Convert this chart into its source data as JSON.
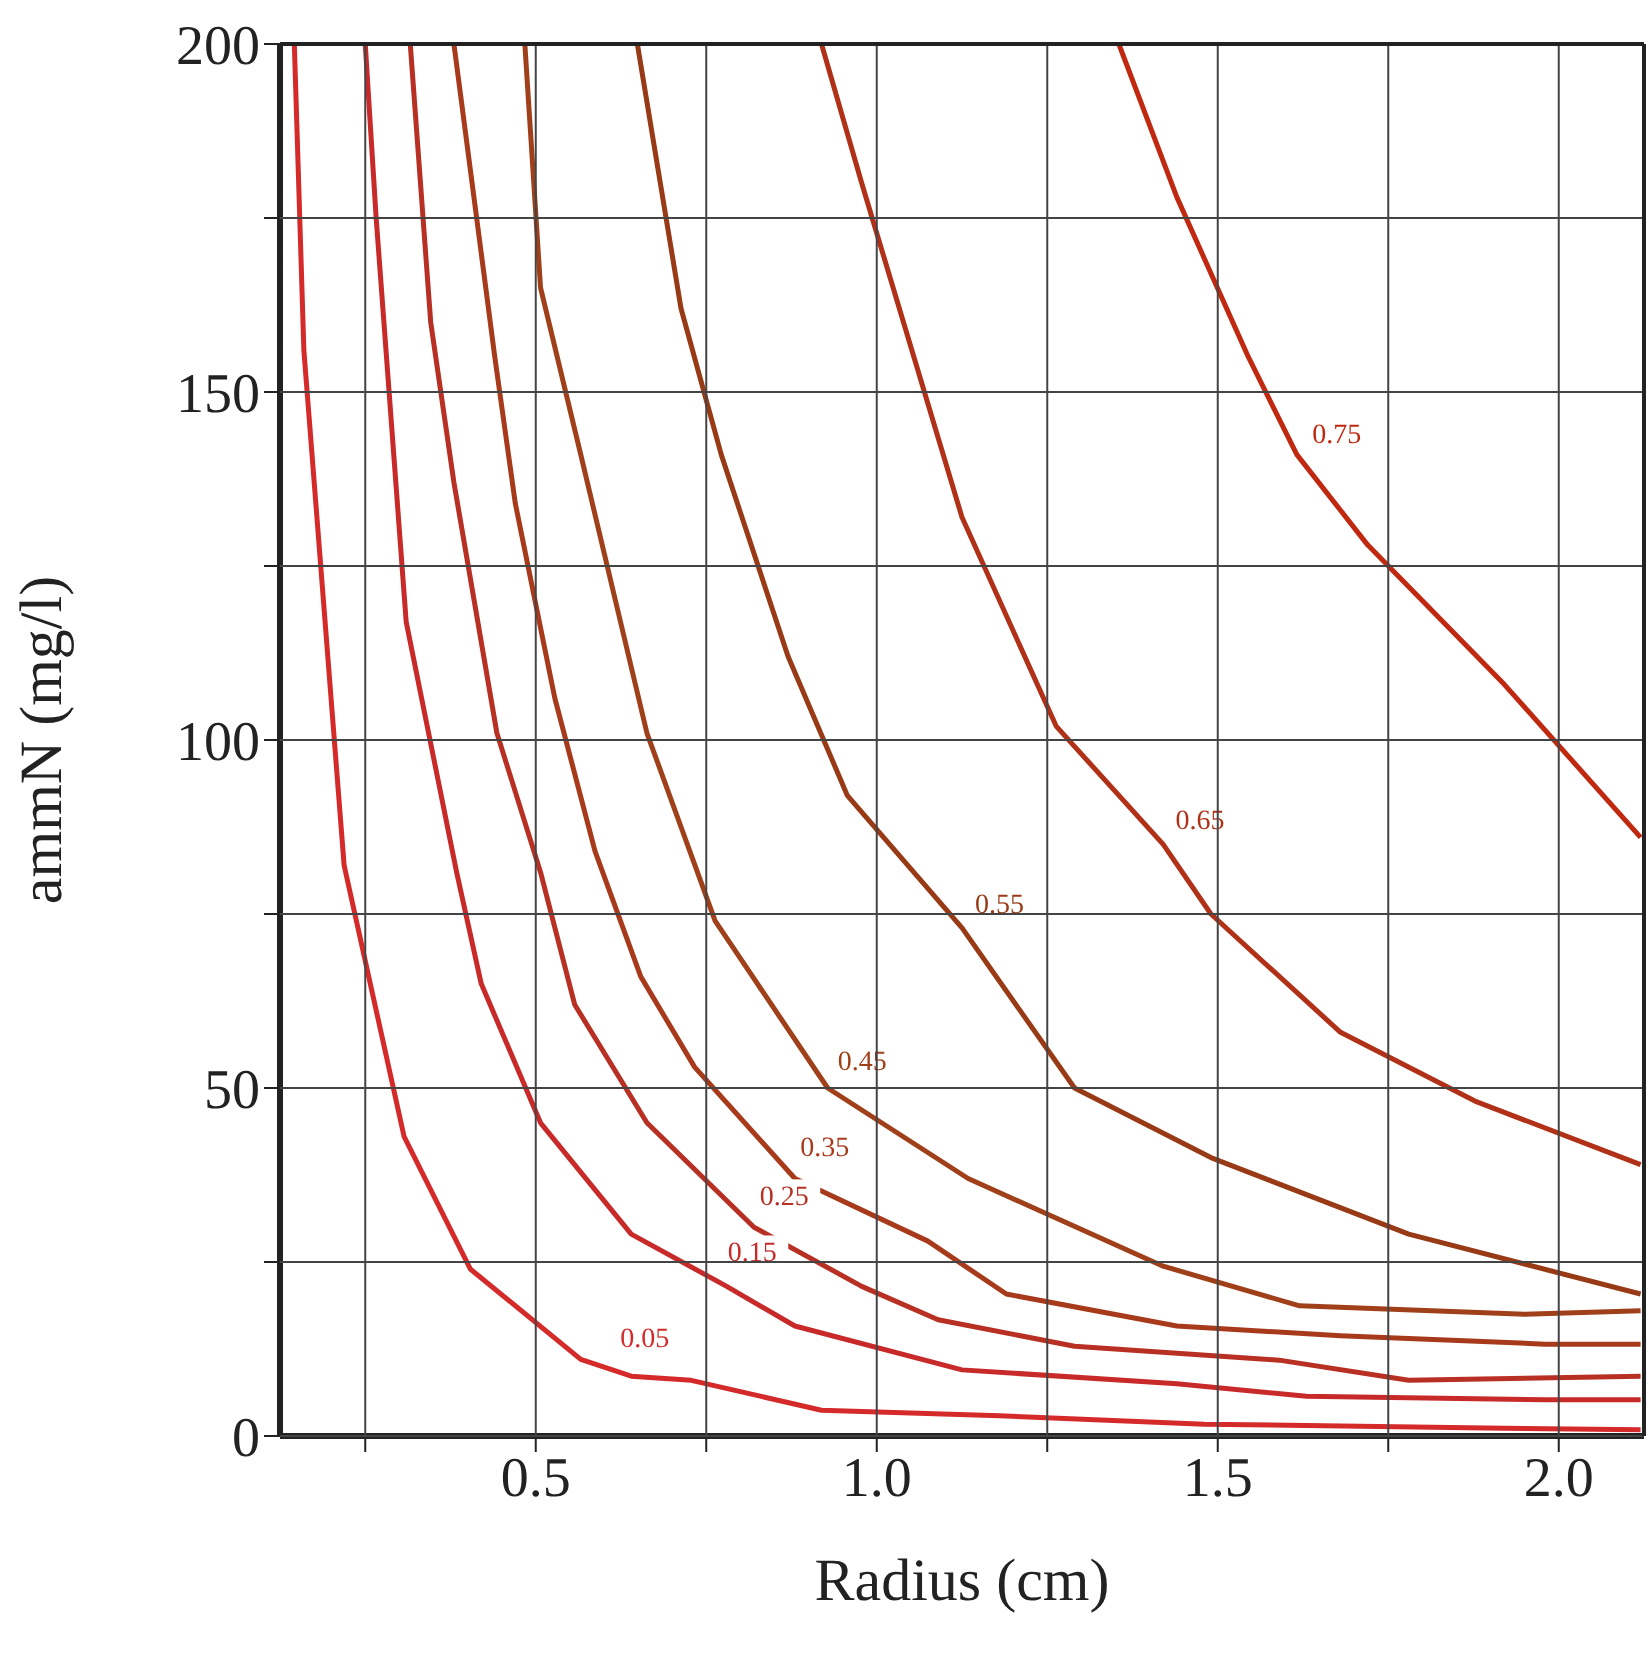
{
  "chart_data": {
    "type": "line",
    "xlabel": "Radius (cm)",
    "ylabel": "ammN (mg/l)",
    "xlim": [
      0.125,
      2.125
    ],
    "ylim": [
      0,
      200
    ],
    "xticks": [
      {
        "value": 0.25,
        "label": null
      },
      {
        "value": 0.5,
        "label": "0.5"
      },
      {
        "value": 0.75,
        "label": null
      },
      {
        "value": 1,
        "label": "1.0"
      },
      {
        "value": 1.25,
        "label": null
      },
      {
        "value": 1.5,
        "label": "1.5"
      },
      {
        "value": 1.75,
        "label": null
      },
      {
        "value": 2,
        "label": "2.0"
      }
    ],
    "yticks": [
      0,
      {
        "value": 25,
        "label": null
      },
      50,
      {
        "value": 75,
        "label": null
      },
      100,
      {
        "value": 125,
        "label": null
      },
      150,
      {
        "value": 175,
        "label": null
      },
      200
    ],
    "grid": true,
    "legend": false,
    "marker": "none",
    "line_style": "solid",
    "series": [
      {
        "name": "0.05",
        "color": "#d42a2a",
        "x": [
          0.146,
          0.16,
          0.219,
          0.307,
          0.404,
          0.566,
          0.64,
          0.728,
          0.919,
          1.18,
          1.48,
          1.92,
          2.12
        ],
        "values": [
          200,
          156,
          82,
          43,
          24,
          11,
          8.6,
          8,
          3.7,
          2.9,
          1.7,
          1.1,
          0.9
        ]
      },
      {
        "name": "0.15",
        "color": "#c82a2a",
        "x": [
          0.25,
          0.266,
          0.31,
          0.384,
          0.42,
          0.507,
          0.64,
          0.78,
          0.88,
          1.125,
          1.44,
          1.63,
          1.98,
          2.12
        ],
        "values": [
          200,
          175,
          117,
          81,
          65,
          45,
          29,
          21.5,
          15.8,
          9.5,
          7.5,
          5.7,
          5.2,
          5.2
        ]
      },
      {
        "name": "0.25",
        "color": "#b83024",
        "x": [
          0.316,
          0.346,
          0.38,
          0.443,
          0.507,
          0.557,
          0.663,
          0.82,
          0.978,
          1.09,
          1.29,
          1.59,
          1.78,
          2.12
        ],
        "values": [
          200,
          160,
          137,
          101,
          81,
          62,
          45,
          30,
          21.5,
          16.7,
          12.9,
          10.9,
          8,
          8.6
        ]
      },
      {
        "name": "0.35",
        "color": "#a83a1c",
        "x": [
          0.38,
          0.44,
          0.47,
          0.528,
          0.587,
          0.654,
          0.733,
          0.88,
          1.075,
          1.19,
          1.44,
          1.68,
          1.98,
          2.12
        ],
        "values": [
          200,
          155,
          134,
          106,
          84,
          66,
          53,
          37,
          28,
          20.4,
          15.8,
          14.4,
          13.2,
          13.2
        ]
      },
      {
        "name": "0.45",
        "color": "#a0401a",
        "x": [
          0.484,
          0.507,
          0.566,
          0.663,
          0.763,
          0.928,
          1.134,
          1.42,
          1.62,
          1.95,
          2.12
        ],
        "values": [
          200,
          165,
          141,
          101,
          74,
          50,
          37,
          24.4,
          18.7,
          17.5,
          18
        ]
      },
      {
        "name": "0.55",
        "color": "#983a16",
        "x": [
          0.649,
          0.713,
          0.772,
          0.87,
          0.957,
          1.125,
          1.29,
          1.49,
          1.78,
          2.12
        ],
        "values": [
          200,
          162,
          141,
          112,
          92,
          73,
          50,
          40,
          29,
          20.4
        ]
      },
      {
        "name": "0.65",
        "color": "#b03018",
        "x": [
          0.919,
          0.978,
          1.125,
          1.263,
          1.42,
          1.49,
          1.68,
          1.88,
          2.12
        ],
        "values": [
          200,
          180,
          132,
          102,
          85,
          75,
          58,
          48,
          39
        ]
      },
      {
        "name": "0.75",
        "color": "#c02810",
        "x": [
          1.355,
          1.44,
          1.545,
          1.616,
          1.72,
          1.92,
          2.12
        ],
        "values": [
          200,
          178,
          155,
          141,
          128,
          108,
          86
        ]
      }
    ]
  }
}
